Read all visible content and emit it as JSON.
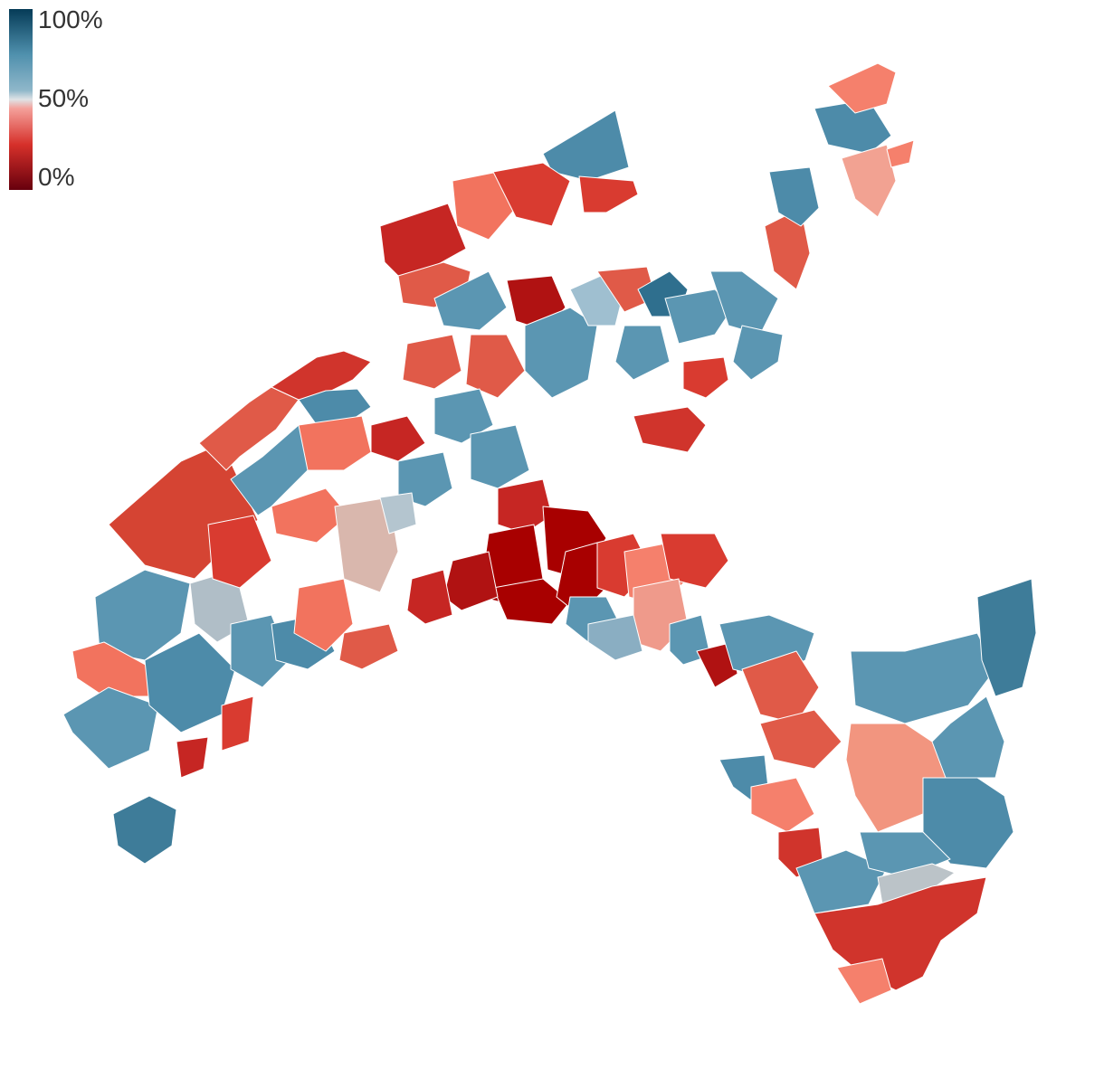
{
  "legend": {
    "max_label": "100%",
    "mid_label": "50%",
    "min_label": "0%",
    "gradient_stops": [
      {
        "value": 0.0,
        "color": "#67000d"
      },
      {
        "value": 0.25,
        "color": "#d6302a"
      },
      {
        "value": 0.45,
        "color": "#f4a09a"
      },
      {
        "value": 0.5,
        "color": "#dfe3e6"
      },
      {
        "value": 0.55,
        "color": "#8fb7ca"
      },
      {
        "value": 0.75,
        "color": "#4f90ad"
      },
      {
        "value": 1.0,
        "color": "#053b57"
      }
    ]
  },
  "map": {
    "boundary_color": "#ffffff",
    "no_data_color": "#c4c4c4"
  },
  "chart_data": {
    "type": "choropleth",
    "scale": {
      "min": 0,
      "mid": 50,
      "max": 100,
      "unit": "%"
    }
  }
}
